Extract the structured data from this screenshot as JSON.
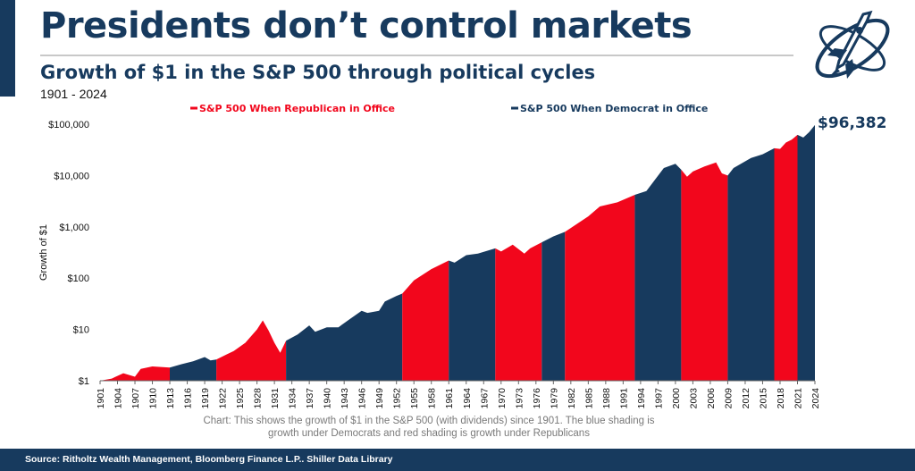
{
  "header": {
    "title": "Presidents don’t control markets",
    "subtitle": "Growth of $1 in the S&P 500 through political cycles",
    "date_range": "1901 - 2024"
  },
  "logo": {
    "icon": "winged-rocket-ring-logo-icon"
  },
  "colors": {
    "republican": "#f2061c",
    "democrat": "#173a5e",
    "text": "#111111",
    "note": "#7a7a7a"
  },
  "end_value_label": "$96,382",
  "footnote": "Chart: This shows the growth of $1 in the S&P 500 (with dividends) since 1901. The blue shading is growth under Democrats and red shading is growth under Republicans",
  "source": "Source: Ritholtz Wealth Management, Bloomberg Finance L.P.. Shiller Data Library",
  "chart_data": {
    "type": "area",
    "ylabel": "Growth of $1",
    "xlabel": "",
    "y_scale": "log",
    "ylim": [
      1,
      100000
    ],
    "xlim": [
      1901,
      2024
    ],
    "y_ticks": [
      {
        "value": 1,
        "label": "$1"
      },
      {
        "value": 10,
        "label": "$10"
      },
      {
        "value": 100,
        "label": "$100"
      },
      {
        "value": 1000,
        "label": "$1,000"
      },
      {
        "value": 10000,
        "label": "$10,000"
      },
      {
        "value": 100000,
        "label": "$100,000"
      }
    ],
    "x_ticks": [
      1901,
      1904,
      1907,
      1910,
      1913,
      1916,
      1919,
      1922,
      1925,
      1928,
      1931,
      1934,
      1937,
      1940,
      1943,
      1946,
      1949,
      1952,
      1955,
      1958,
      1961,
      1964,
      1967,
      1970,
      1973,
      1976,
      1979,
      1982,
      1985,
      1988,
      1991,
      1994,
      1997,
      2000,
      2003,
      2006,
      2009,
      2012,
      2015,
      2018,
      2021,
      2024
    ],
    "legend": [
      {
        "name": "S&P 500 When Republican in Office",
        "party": "R"
      },
      {
        "name": "S&P 500 When Democrat in Office",
        "party": "D"
      }
    ],
    "legend_placement": "top",
    "periods": [
      {
        "start": 1901,
        "end": 1913,
        "party": "R"
      },
      {
        "start": 1913,
        "end": 1921,
        "party": "D"
      },
      {
        "start": 1921,
        "end": 1933,
        "party": "R"
      },
      {
        "start": 1933,
        "end": 1953,
        "party": "D"
      },
      {
        "start": 1953,
        "end": 1961,
        "party": "R"
      },
      {
        "start": 1961,
        "end": 1969,
        "party": "D"
      },
      {
        "start": 1969,
        "end": 1977,
        "party": "R"
      },
      {
        "start": 1977,
        "end": 1981,
        "party": "D"
      },
      {
        "start": 1981,
        "end": 1993,
        "party": "R"
      },
      {
        "start": 1993,
        "end": 2001,
        "party": "D"
      },
      {
        "start": 2001,
        "end": 2009,
        "party": "R"
      },
      {
        "start": 2009,
        "end": 2017,
        "party": "D"
      },
      {
        "start": 2017,
        "end": 2021,
        "party": "R"
      },
      {
        "start": 2021,
        "end": 2024,
        "party": "D"
      }
    ],
    "series": [
      {
        "x": [
          1901,
          1903,
          1905,
          1907,
          1908,
          1910,
          1913,
          1915,
          1917,
          1919,
          1920,
          1921,
          1924,
          1926,
          1928,
          1929,
          1930,
          1931,
          1932,
          1933,
          1935,
          1937,
          1938,
          1940,
          1942,
          1944,
          1946,
          1947,
          1949,
          1950,
          1952,
          1953,
          1955,
          1958,
          1961,
          1962,
          1964,
          1966,
          1969,
          1970,
          1972,
          1974,
          1975,
          1977,
          1979,
          1981,
          1982,
          1985,
          1987,
          1990,
          1993,
          1995,
          1998,
          2000,
          2001,
          2002,
          2003,
          2005,
          2007,
          2008,
          2009,
          2010,
          2013,
          2015,
          2017,
          2018,
          2019,
          2020,
          2021,
          2022,
          2023,
          2024
        ],
        "y": [
          1,
          1.1,
          1.4,
          1.2,
          1.7,
          1.9,
          1.8,
          2.1,
          2.4,
          2.9,
          2.5,
          2.6,
          3.8,
          5.5,
          10,
          15,
          9.5,
          5.5,
          3.5,
          6,
          8,
          12,
          9,
          11,
          11,
          16,
          23,
          21,
          23,
          35,
          45,
          50,
          90,
          150,
          220,
          200,
          280,
          300,
          380,
          330,
          450,
          300,
          380,
          500,
          650,
          800,
          950,
          1600,
          2500,
          3000,
          4200,
          5000,
          14000,
          17000,
          13000,
          9500,
          12000,
          15000,
          18000,
          11000,
          10000,
          14000,
          22000,
          26000,
          34000,
          33000,
          44000,
          50000,
          62000,
          55000,
          70000,
          96382
        ]
      }
    ]
  }
}
